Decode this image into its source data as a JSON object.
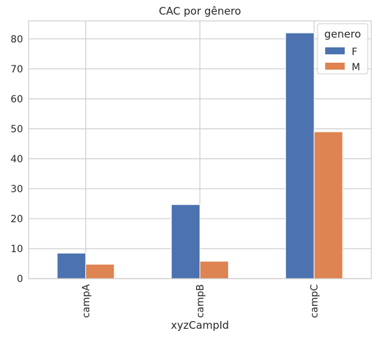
{
  "chart_data": {
    "type": "bar",
    "title": "CAC por gênero",
    "xlabel": "xyzCampId",
    "ylabel": "",
    "categories": [
      "campA",
      "campB",
      "campC"
    ],
    "series": [
      {
        "name": "F",
        "values": [
          8.5,
          24.7,
          82.0
        ],
        "color": "#4c72b0"
      },
      {
        "name": "M",
        "values": [
          4.8,
          5.8,
          49.0
        ],
        "color": "#dd8452"
      }
    ],
    "ylim": [
      0,
      86
    ],
    "yticks": [
      0,
      10,
      20,
      30,
      40,
      50,
      60,
      70,
      80
    ],
    "grid": true,
    "legend": {
      "title": "genero",
      "placement": "top-right"
    }
  }
}
